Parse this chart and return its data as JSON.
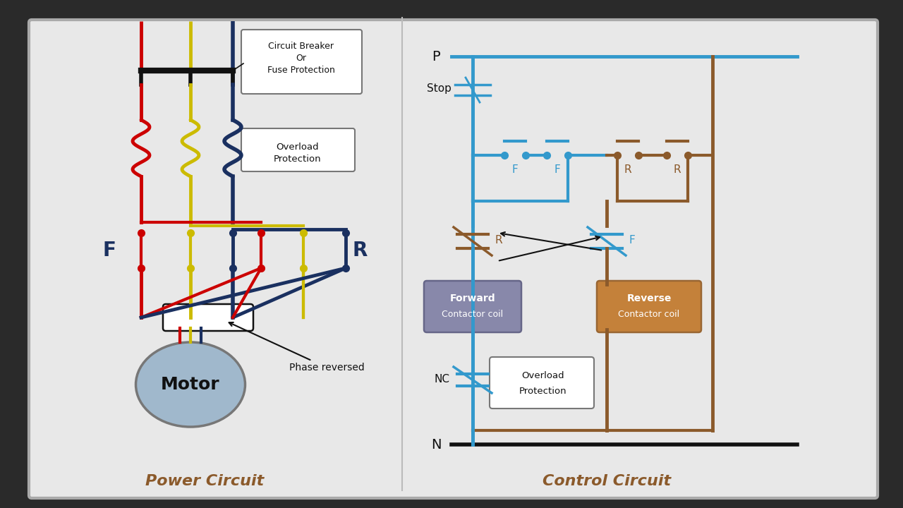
{
  "bg_dark": "#2a2a2a",
  "panel_bg": "#e8e8e8",
  "panel_edge": "#aaaaaa",
  "red": "#cc0000",
  "yellow": "#ccbb00",
  "blue": "#1a3060",
  "cyan": "#3399cc",
  "brown": "#8B5A2B",
  "black": "#111111",
  "gray_box_fill": "#8888aa",
  "orange_box_fill": "#c4813a",
  "white": "#ffffff",
  "label_color": "#8B5A2B",
  "power_title": "Power Circuit",
  "control_title": "Control Circuit",
  "cb_text": [
    "Circuit Breaker",
    "Or",
    "Fuse Protection"
  ],
  "ol_text": [
    "Overload",
    "Protection"
  ],
  "fwd_coil_text": [
    "Forward",
    "Contactor coil"
  ],
  "rev_coil_text": [
    "Reverse",
    "Contactor coil"
  ],
  "ol_ctrl_text": [
    "Overload",
    "Protection"
  ],
  "phase_rev_text": "Phase reversed",
  "stop_text": "Stop",
  "p_text": "P",
  "n_text": "N",
  "nc_text": "NC",
  "f_text": "F",
  "r_text": "R",
  "motor_text": "Motor"
}
